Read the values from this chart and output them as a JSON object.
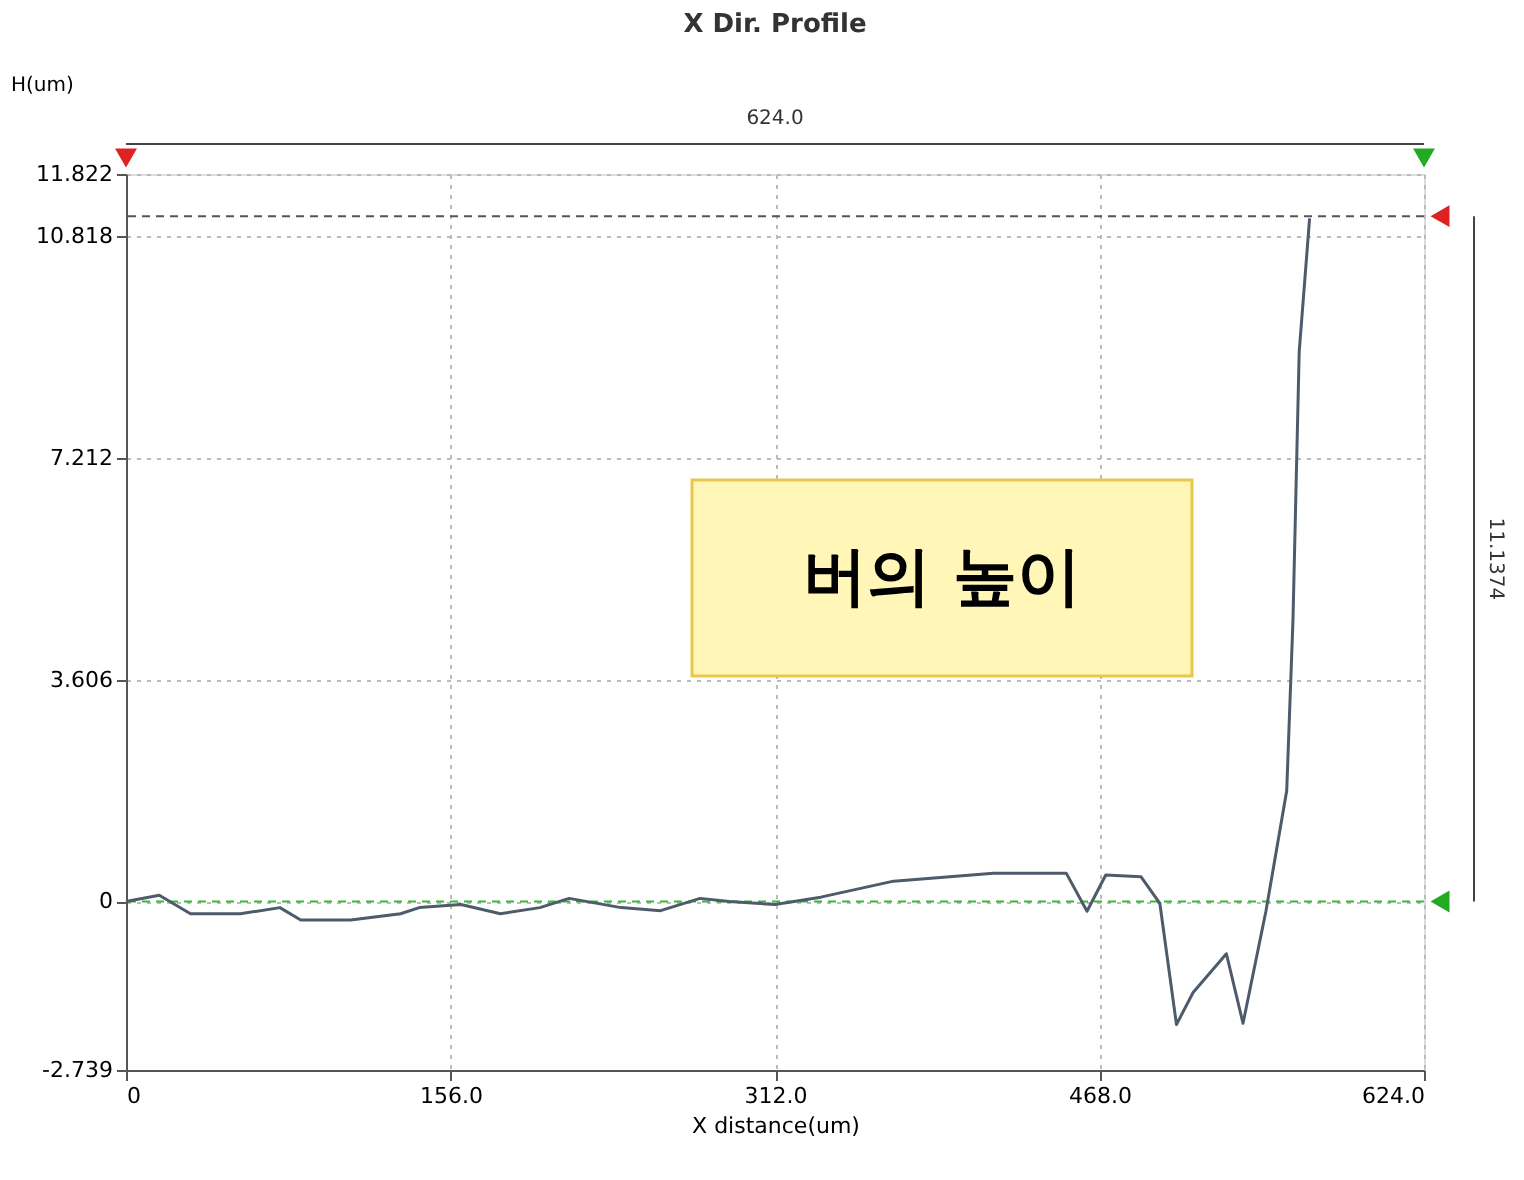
{
  "chart_data": {
    "type": "line",
    "title": "X Dir. Profile",
    "xlabel": "X distance(um)",
    "ylabel": "H(um)",
    "x": [
      0,
      16,
      31,
      55,
      74,
      84,
      108,
      132,
      141,
      161,
      180,
      199,
      213,
      238,
      257,
      276,
      290,
      312,
      334,
      369,
      417,
      452,
      462,
      471,
      488,
      497,
      505,
      513,
      529,
      537,
      548,
      558,
      561,
      564,
      569
    ],
    "series": [
      {
        "color": "#4d5b6b",
        "values": [
          0,
          0.1,
          -0.2,
          -0.2,
          -0.1,
          -0.3,
          -0.3,
          -0.2,
          -0.1,
          -0.05,
          -0.2,
          -0.1,
          0.05,
          -0.1,
          -0.15,
          0.05,
          0,
          -0.05,
          0.07,
          0.33,
          0.46,
          0.46,
          -0.16,
          0.43,
          0.4,
          -0.03,
          -2.0,
          -1.48,
          -0.85,
          -1.98,
          -0.16,
          1.8,
          4.56,
          8.93,
          11.1
        ]
      }
    ],
    "xlim": [
      0,
      624
    ],
    "ylim": [
      -2.739,
      11.822
    ],
    "xticks": [
      0,
      {
        "value": 156,
        "label": "156.0"
      },
      {
        "value": 312,
        "label": "312.0"
      },
      {
        "value": 468,
        "label": "468.0"
      },
      {
        "value": 624,
        "label": "624.0"
      }
    ],
    "yticks": [
      -2.739,
      0,
      3.606,
      7.212,
      10.818,
      11.822
    ],
    "grid": true,
    "ref_lines": [
      {
        "axis": "y",
        "value": 11.1374,
        "color": "#555555",
        "line_style": "dashed"
      },
      {
        "axis": "y",
        "value": 0,
        "color": "#33bb33",
        "line_style": "dashed"
      }
    ],
    "annotations": [
      "624.0",
      "11.1374",
      "버의 높이"
    ]
  }
}
